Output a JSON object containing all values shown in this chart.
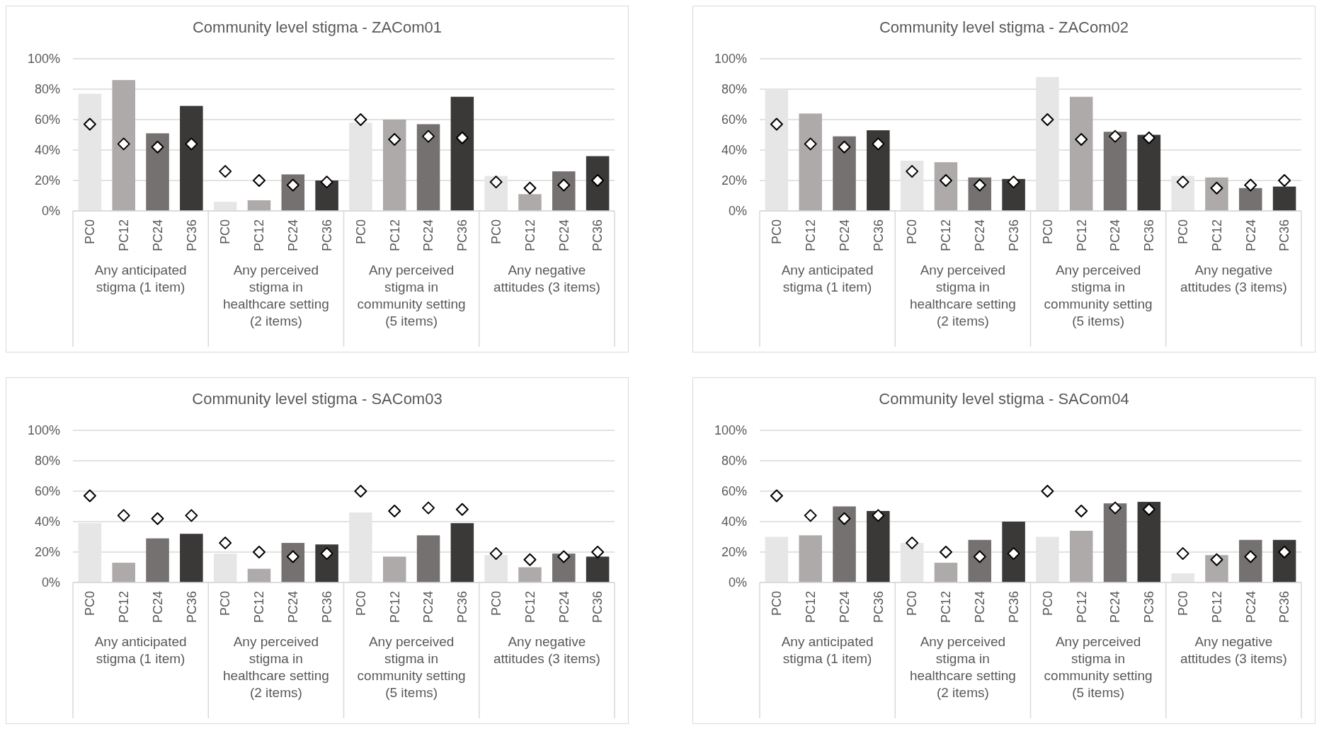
{
  "chart_data": [
    {
      "type": "bar",
      "title": "Community level stigma - ZACom01",
      "categories": [
        "PC0",
        "PC12",
        "PC24",
        "PC36",
        "PC0",
        "PC12",
        "PC24",
        "PC36",
        "PC0",
        "PC12",
        "PC24",
        "PC36",
        "PC0",
        "PC12",
        "PC24",
        "PC36"
      ],
      "annotations": [
        "Any anticipated stigma (1 item)",
        "Any perceived stigma in healthcare setting (2 items)",
        "Any perceived stigma in community setting (5 items)",
        "Any negative attitudes (3 items)"
      ],
      "ylim": [
        0,
        100
      ],
      "yticks": [
        {
          "value": 0,
          "label": "0%"
        },
        {
          "value": 20,
          "label": "20%"
        },
        {
          "value": 40,
          "label": "40%"
        },
        {
          "value": 60,
          "label": "60%"
        },
        {
          "value": 80,
          "label": "80%"
        },
        {
          "value": 100,
          "label": "100%"
        }
      ],
      "grid": "y",
      "series": [
        {
          "type": "bar",
          "colors": [
            "#e7e6e6",
            "#aeaaaa",
            "#767171",
            "#3b3838",
            "#e7e6e6",
            "#aeaaaa",
            "#767171",
            "#3b3838",
            "#e7e6e6",
            "#aeaaaa",
            "#767171",
            "#3b3838",
            "#e7e6e6",
            "#aeaaaa",
            "#767171",
            "#3b3838"
          ],
          "values": [
            77,
            86,
            51,
            69,
            6,
            7,
            24,
            20,
            58,
            60,
            57,
            75,
            23,
            11,
            26,
            36
          ]
        },
        {
          "type": "scatter",
          "marker": "diamond",
          "color": "#ffffff",
          "values": [
            57,
            44,
            42,
            44,
            26,
            20,
            17,
            19,
            60,
            47,
            49,
            48,
            19,
            15,
            17,
            20
          ]
        }
      ]
    },
    {
      "type": "bar",
      "title": "Community level stigma - ZACom02",
      "categories": [
        "PC0",
        "PC12",
        "PC24",
        "PC36",
        "PC0",
        "PC12",
        "PC24",
        "PC36",
        "PC0",
        "PC12",
        "PC24",
        "PC36",
        "PC0",
        "PC12",
        "PC24",
        "PC36"
      ],
      "annotations": [
        "Any anticipated stigma (1 item)",
        "Any perceived stigma in healthcare setting (2 items)",
        "Any perceived stigma in community setting (5 items)",
        "Any negative attitudes (3 items)"
      ],
      "ylim": [
        0,
        100
      ],
      "yticks": [
        {
          "value": 0,
          "label": "0%"
        },
        {
          "value": 20,
          "label": "20%"
        },
        {
          "value": 40,
          "label": "40%"
        },
        {
          "value": 60,
          "label": "60%"
        },
        {
          "value": 80,
          "label": "80%"
        },
        {
          "value": 100,
          "label": "100%"
        }
      ],
      "grid": "y",
      "series": [
        {
          "type": "bar",
          "colors": [
            "#e7e6e6",
            "#aeaaaa",
            "#767171",
            "#3b3838",
            "#e7e6e6",
            "#aeaaaa",
            "#767171",
            "#3b3838",
            "#e7e6e6",
            "#aeaaaa",
            "#767171",
            "#3b3838",
            "#e7e6e6",
            "#aeaaaa",
            "#767171",
            "#3b3838"
          ],
          "values": [
            80,
            64,
            49,
            53,
            33,
            32,
            22,
            21,
            88,
            75,
            52,
            50,
            23,
            22,
            15,
            16
          ]
        },
        {
          "type": "scatter",
          "marker": "diamond",
          "color": "#ffffff",
          "values": [
            57,
            44,
            42,
            44,
            26,
            20,
            17,
            19,
            60,
            47,
            49,
            48,
            19,
            15,
            17,
            20
          ]
        }
      ]
    },
    {
      "type": "bar",
      "title": "Community level stigma - SACom03",
      "categories": [
        "PC0",
        "PC12",
        "PC24",
        "PC36",
        "PC0",
        "PC12",
        "PC24",
        "PC36",
        "PC0",
        "PC12",
        "PC24",
        "PC36",
        "PC0",
        "PC12",
        "PC24",
        "PC36"
      ],
      "annotations": [
        "Any anticipated stigma (1 item)",
        "Any perceived stigma in healthcare setting (2 items)",
        "Any perceived stigma in community setting (5 items)",
        "Any negative attitudes (3 items)"
      ],
      "ylim": [
        0,
        100
      ],
      "yticks": [
        {
          "value": 0,
          "label": "0%"
        },
        {
          "value": 20,
          "label": "20%"
        },
        {
          "value": 40,
          "label": "40%"
        },
        {
          "value": 60,
          "label": "60%"
        },
        {
          "value": 80,
          "label": "80%"
        },
        {
          "value": 100,
          "label": "100%"
        }
      ],
      "grid": "y",
      "series": [
        {
          "type": "bar",
          "colors": [
            "#e7e6e6",
            "#aeaaaa",
            "#767171",
            "#3b3838",
            "#e7e6e6",
            "#aeaaaa",
            "#767171",
            "#3b3838",
            "#e7e6e6",
            "#aeaaaa",
            "#767171",
            "#3b3838",
            "#e7e6e6",
            "#aeaaaa",
            "#767171",
            "#3b3838"
          ],
          "values": [
            39,
            13,
            29,
            32,
            19,
            9,
            26,
            25,
            46,
            17,
            31,
            39,
            18,
            10,
            19,
            17
          ]
        },
        {
          "type": "scatter",
          "marker": "diamond",
          "color": "#ffffff",
          "values": [
            57,
            44,
            42,
            44,
            26,
            20,
            17,
            19,
            60,
            47,
            49,
            48,
            19,
            15,
            17,
            20
          ]
        }
      ]
    },
    {
      "type": "bar",
      "title": "Community level stigma - SACom04",
      "categories": [
        "PC0",
        "PC12",
        "PC24",
        "PC36",
        "PC0",
        "PC12",
        "PC24",
        "PC36",
        "PC0",
        "PC12",
        "PC24",
        "PC36",
        "PC0",
        "PC12",
        "PC24",
        "PC36"
      ],
      "annotations": [
        "Any anticipated stigma (1 item)",
        "Any perceived stigma in healthcare setting (2 items)",
        "Any perceived stigma in community setting (5 items)",
        "Any negative attitudes (3 items)"
      ],
      "ylim": [
        0,
        100
      ],
      "yticks": [
        {
          "value": 0,
          "label": "0%"
        },
        {
          "value": 20,
          "label": "20%"
        },
        {
          "value": 40,
          "label": "40%"
        },
        {
          "value": 60,
          "label": "60%"
        },
        {
          "value": 80,
          "label": "80%"
        },
        {
          "value": 100,
          "label": "100%"
        }
      ],
      "grid": "y",
      "series": [
        {
          "type": "bar",
          "colors": [
            "#e7e6e6",
            "#aeaaaa",
            "#767171",
            "#3b3838",
            "#e7e6e6",
            "#aeaaaa",
            "#767171",
            "#3b3838",
            "#e7e6e6",
            "#aeaaaa",
            "#767171",
            "#3b3838",
            "#e7e6e6",
            "#aeaaaa",
            "#767171",
            "#3b3838"
          ],
          "values": [
            30,
            31,
            50,
            47,
            26,
            13,
            28,
            40,
            30,
            34,
            52,
            53,
            6,
            18,
            28,
            28
          ]
        },
        {
          "type": "scatter",
          "marker": "diamond",
          "color": "#ffffff",
          "values": [
            57,
            44,
            42,
            44,
            26,
            20,
            17,
            19,
            60,
            47,
            49,
            48,
            19,
            15,
            17,
            20
          ]
        }
      ]
    }
  ]
}
